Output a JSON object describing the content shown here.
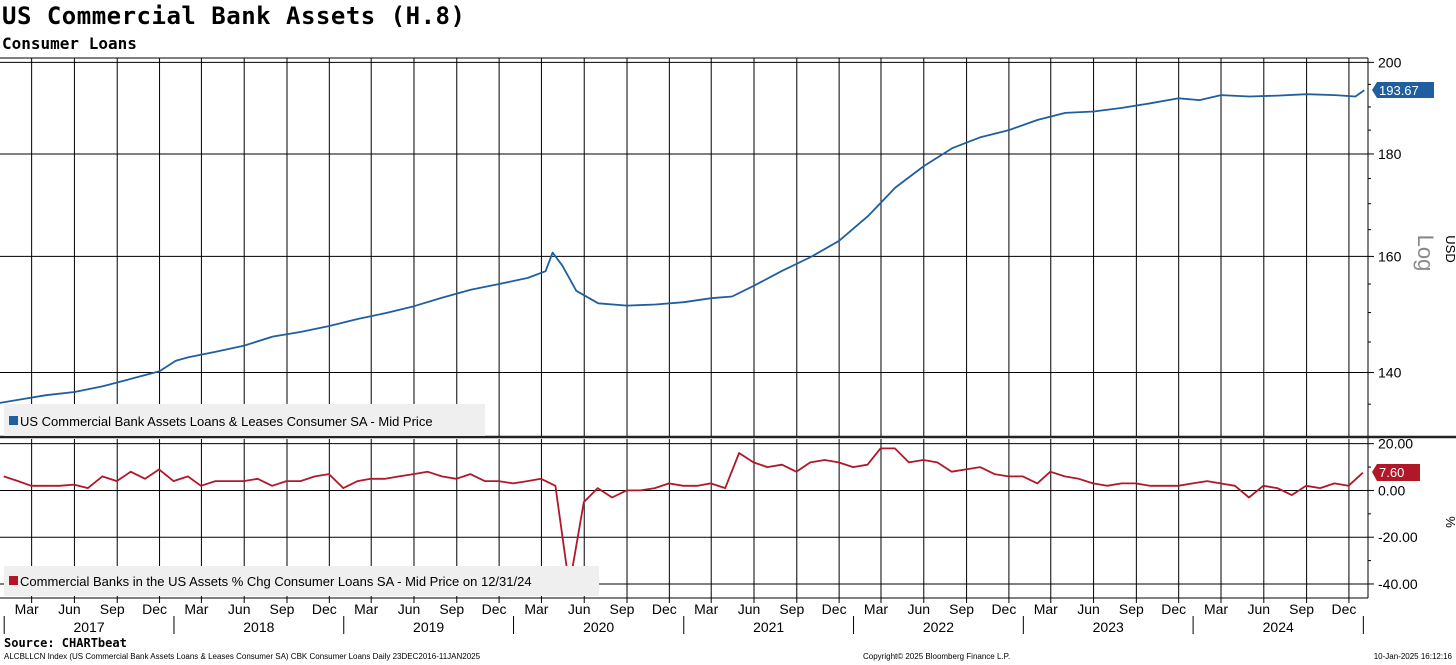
{
  "header": {
    "title": "US Commercial Bank Assets (H.8)",
    "subtitle": "Consumer Loans"
  },
  "footer": {
    "source": "Source: CHARTbeat",
    "description": "ALCBLLCN Index (US Commercial Bank Assets Loans & Leases Consumer SA) CBK Consumer Loans  Daily 23DEC2016-11JAN2025",
    "copyright": "Copyright© 2025 Bloomberg Finance L.P.",
    "timestamp": "10-Jan-2025 16:12:16"
  },
  "colors": {
    "upper_series": "#1f5f9f",
    "lower_series": "#b0182a",
    "grid": "#000000"
  },
  "chart_data": [
    {
      "type": "line",
      "panel": "upper",
      "scale": "log",
      "ylabel": "USD",
      "scale_label": "Log",
      "ylim": [
        130,
        201
      ],
      "yticks": [
        140,
        160,
        180,
        200
      ],
      "legend": "US Commercial Bank Assets Loans & Leases Consumer SA - Mid Price",
      "legend_position": "bottom-left",
      "last_value": 193.67,
      "last_value_label": "193.67",
      "series": [
        {
          "name": "US Commercial Bank Assets Loans & Leases Consumer SA - Mid Price",
          "x": [
            "2016-12-23",
            "2017-02-01",
            "2017-04-01",
            "2017-06-01",
            "2017-08-01",
            "2017-10-01",
            "2017-12-01",
            "2018-01-05",
            "2018-02-01",
            "2018-04-01",
            "2018-06-01",
            "2018-08-01",
            "2018-10-01",
            "2018-12-01",
            "2019-02-01",
            "2019-04-01",
            "2019-06-01",
            "2019-08-01",
            "2019-10-01",
            "2019-12-01",
            "2020-02-01",
            "2020-03-10",
            "2020-03-25",
            "2020-04-15",
            "2020-05-15",
            "2020-07-01",
            "2020-09-01",
            "2020-11-01",
            "2021-01-01",
            "2021-03-01",
            "2021-04-15",
            "2021-06-01",
            "2021-08-01",
            "2021-10-01",
            "2021-12-01",
            "2022-02-01",
            "2022-04-01",
            "2022-06-01",
            "2022-08-01",
            "2022-10-01",
            "2022-12-01",
            "2023-02-01",
            "2023-04-01",
            "2023-06-01",
            "2023-08-01",
            "2023-10-01",
            "2023-12-01",
            "2024-01-15",
            "2024-03-01",
            "2024-05-01",
            "2024-07-01",
            "2024-09-01",
            "2024-11-01",
            "2024-12-15",
            "2025-01-03"
          ],
          "y": [
            135.2,
            135.7,
            136.4,
            136.9,
            137.8,
            139.0,
            140.2,
            141.9,
            142.5,
            143.4,
            144.4,
            145.9,
            146.7,
            147.7,
            148.9,
            149.9,
            151.1,
            152.6,
            154.0,
            155.0,
            156.1,
            157.3,
            160.7,
            158.3,
            153.8,
            151.6,
            151.2,
            151.4,
            151.8,
            152.5,
            152.8,
            154.7,
            157.4,
            159.9,
            162.9,
            167.6,
            173.2,
            177.5,
            181.2,
            183.5,
            185.0,
            187.2,
            188.7,
            189.0,
            189.8,
            190.8,
            191.9,
            191.5,
            192.6,
            192.3,
            192.5,
            192.8,
            192.6,
            192.3,
            193.67
          ]
        }
      ]
    },
    {
      "type": "line",
      "panel": "lower",
      "ylabel": "%",
      "ylim": [
        -46,
        22
      ],
      "yticks": [
        20,
        0,
        -20,
        -40
      ],
      "ytick_labels": [
        "20.00",
        "0.00",
        "-20.00",
        "-40.00"
      ],
      "legend": "Commercial Banks in the US Assets % Chg Consumer Loans SA - Mid Price on 12/31/24",
      "legend_position": "bottom-left",
      "last_value": 7.6,
      "last_value_label": "7.60",
      "series": [
        {
          "name": "Commercial Banks in the US Assets % Chg Consumer Loans SA - Mid Price on 12/31/24",
          "x": [
            "2016-12-31",
            "2017-01-31",
            "2017-02-28",
            "2017-03-31",
            "2017-04-30",
            "2017-05-31",
            "2017-06-30",
            "2017-07-31",
            "2017-08-31",
            "2017-09-30",
            "2017-10-31",
            "2017-11-30",
            "2017-12-31",
            "2018-01-31",
            "2018-02-28",
            "2018-03-31",
            "2018-04-30",
            "2018-05-31",
            "2018-06-30",
            "2018-07-31",
            "2018-08-31",
            "2018-09-30",
            "2018-10-31",
            "2018-11-30",
            "2018-12-31",
            "2019-01-31",
            "2019-02-28",
            "2019-03-31",
            "2019-04-30",
            "2019-05-31",
            "2019-06-30",
            "2019-07-31",
            "2019-08-31",
            "2019-09-30",
            "2019-10-31",
            "2019-11-30",
            "2019-12-31",
            "2020-01-31",
            "2020-02-29",
            "2020-03-31",
            "2020-04-30",
            "2020-05-31",
            "2020-06-30",
            "2020-07-31",
            "2020-08-31",
            "2020-09-30",
            "2020-10-31",
            "2020-11-30",
            "2020-12-31",
            "2021-01-31",
            "2021-02-28",
            "2021-03-31",
            "2021-04-30",
            "2021-05-31",
            "2021-06-30",
            "2021-07-31",
            "2021-08-31",
            "2021-09-30",
            "2021-10-31",
            "2021-11-30",
            "2021-12-31",
            "2022-01-31",
            "2022-02-28",
            "2022-03-31",
            "2022-04-30",
            "2022-05-31",
            "2022-06-30",
            "2022-07-31",
            "2022-08-31",
            "2022-09-30",
            "2022-10-31",
            "2022-11-30",
            "2022-12-31",
            "2023-01-31",
            "2023-02-28",
            "2023-03-31",
            "2023-04-30",
            "2023-05-31",
            "2023-06-30",
            "2023-07-31",
            "2023-08-31",
            "2023-09-30",
            "2023-10-31",
            "2023-11-30",
            "2023-12-31",
            "2024-01-31",
            "2024-02-29",
            "2024-03-31",
            "2024-04-30",
            "2024-05-31",
            "2024-06-30",
            "2024-07-31",
            "2024-08-31",
            "2024-09-30",
            "2024-10-31",
            "2024-11-30",
            "2024-12-31"
          ],
          "y": [
            6,
            4,
            2,
            2,
            2,
            2.5,
            1,
            6,
            4,
            8,
            5,
            9,
            4,
            6,
            2,
            4,
            4,
            4,
            5,
            2,
            4,
            4,
            6,
            7,
            1,
            4,
            5,
            5,
            6,
            7,
            8,
            6,
            5,
            7,
            4,
            4,
            3,
            4,
            5,
            2,
            -41,
            -5,
            1,
            -3,
            0,
            0,
            1,
            3,
            2,
            2,
            3,
            1,
            16,
            12,
            10,
            11,
            8,
            12,
            13,
            12,
            10,
            11,
            18,
            18,
            12,
            13,
            12,
            8,
            9,
            10,
            7,
            6,
            6,
            3,
            8,
            6,
            5,
            3,
            2,
            3,
            3,
            2,
            2,
            2,
            3,
            4,
            3,
            2,
            -3,
            2,
            1,
            -2,
            2,
            1,
            3,
            2,
            7.6
          ]
        }
      ]
    },
    {
      "type": "axis",
      "panel": "shared-x",
      "month_labels": [
        "Mar",
        "Jun",
        "Sep",
        "Dec",
        "Mar",
        "Jun",
        "Sep",
        "Dec",
        "Mar",
        "Jun",
        "Sep",
        "Dec",
        "Mar",
        "Jun",
        "Sep",
        "Dec",
        "Mar",
        "Jun",
        "Sep",
        "Dec",
        "Mar",
        "Jun",
        "Sep",
        "Dec",
        "Mar",
        "Jun",
        "Sep",
        "Dec",
        "Mar",
        "Jun",
        "Sep",
        "Dec"
      ],
      "month_dates": [
        "2017-03",
        "2017-06",
        "2017-09",
        "2017-12",
        "2018-03",
        "2018-06",
        "2018-09",
        "2018-12",
        "2019-03",
        "2019-06",
        "2019-09",
        "2019-12",
        "2020-03",
        "2020-06",
        "2020-09",
        "2020-12",
        "2021-03",
        "2021-06",
        "2021-09",
        "2021-12",
        "2022-03",
        "2022-06",
        "2022-09",
        "2022-12",
        "2023-03",
        "2023-06",
        "2023-09",
        "2023-12",
        "2024-03",
        "2024-06",
        "2024-09",
        "2024-12"
      ],
      "year_labels": [
        "2017",
        "2018",
        "2019",
        "2020",
        "2021",
        "2022",
        "2023",
        "2024"
      ]
    }
  ]
}
